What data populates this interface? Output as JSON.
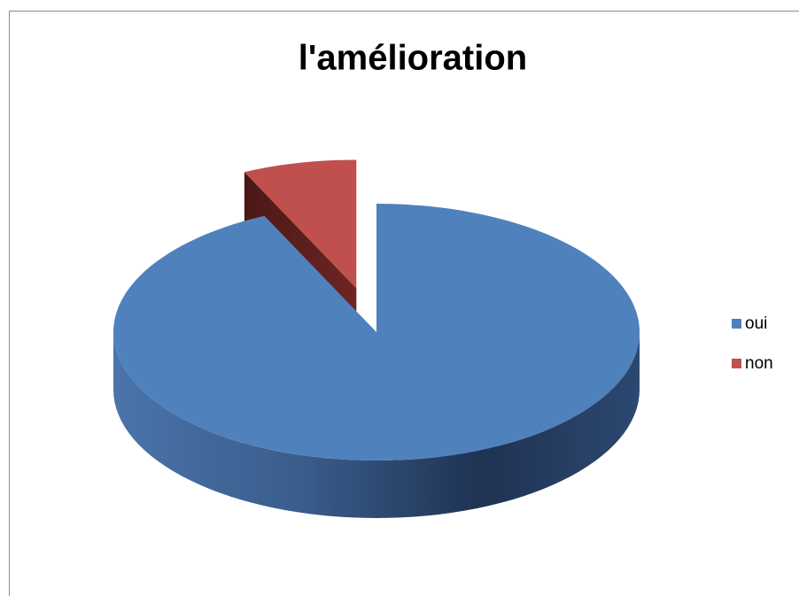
{
  "chart_data": {
    "type": "pie",
    "title": "l'amélioration",
    "categories": [
      "oui",
      "non"
    ],
    "values": [
      93,
      7
    ],
    "colors": [
      "#4f81bd",
      "#c0504d"
    ],
    "exploded": [
      false,
      true
    ],
    "legend": "right"
  }
}
